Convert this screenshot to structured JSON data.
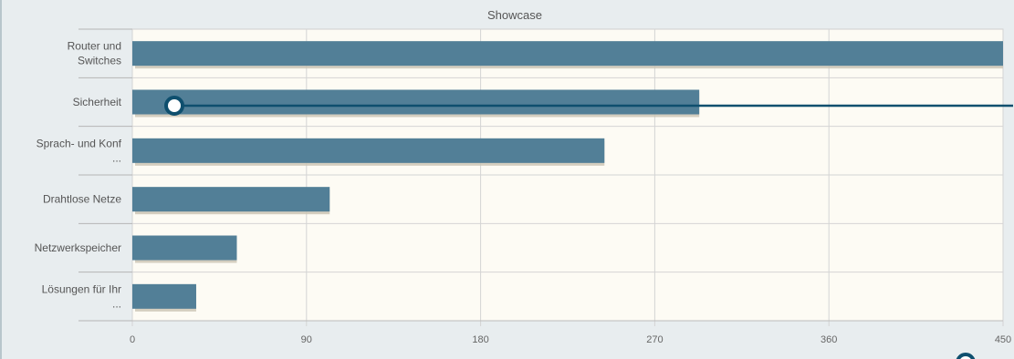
{
  "chart_data": {
    "type": "bar",
    "orientation": "horizontal",
    "title": "Showcase",
    "categories": [
      [
        "Router und",
        "Switches"
      ],
      [
        "Sicherheit"
      ],
      [
        "Sprach- und Konf",
        "..."
      ],
      [
        "Drahtlose Netze"
      ],
      [
        "Netzwerkspeicher"
      ],
      [
        "Lösungen für Ihr",
        "..."
      ]
    ],
    "values": [
      450,
      293,
      244,
      102,
      54,
      33
    ],
    "xlim": [
      0,
      450
    ],
    "xticks": [
      0,
      90,
      180,
      270,
      360,
      450
    ],
    "grid": true,
    "colors": {
      "bar": "#527f97",
      "bar_shadow": "#c9c3b2",
      "plot_bg": "#fdfbf4",
      "grid": "#d4d4d4",
      "cursor_line": "#0e4f6e"
    }
  }
}
